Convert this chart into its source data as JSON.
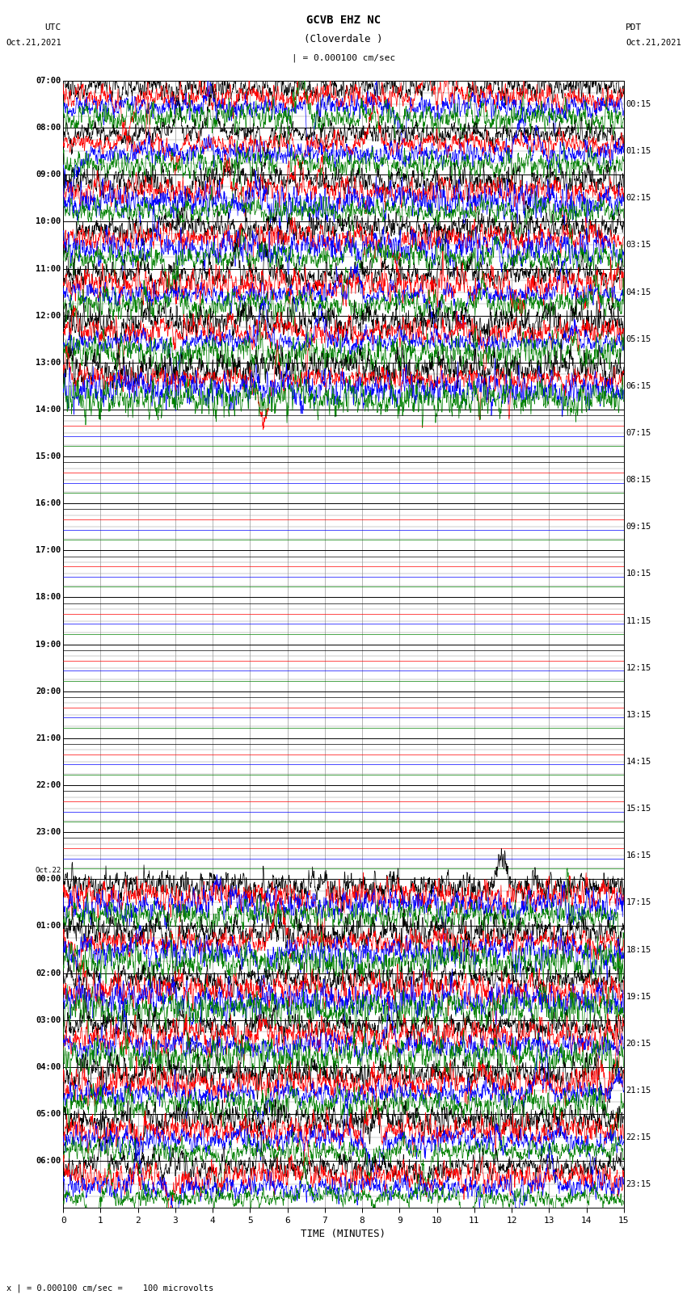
{
  "title_line1": "GCVB EHZ NC",
  "title_line2": "(Cloverdale )",
  "scale_text": "| = 0.000100 cm/sec",
  "bottom_label": "x | = 0.000100 cm/sec =    100 microvolts",
  "xlabel": "TIME (MINUTES)",
  "left_times": [
    "07:00",
    "08:00",
    "09:00",
    "10:00",
    "11:00",
    "12:00",
    "13:00",
    "14:00",
    "15:00",
    "16:00",
    "17:00",
    "18:00",
    "19:00",
    "20:00",
    "21:00",
    "22:00",
    "23:00",
    "Oct.22\n00:00",
    "01:00",
    "02:00",
    "03:00",
    "04:00",
    "05:00",
    "06:00"
  ],
  "right_times": [
    "00:15",
    "01:15",
    "02:15",
    "03:15",
    "04:15",
    "05:15",
    "06:15",
    "07:15",
    "08:15",
    "09:15",
    "10:15",
    "11:15",
    "12:15",
    "13:15",
    "14:15",
    "15:15",
    "16:15",
    "17:15",
    "18:15",
    "19:15",
    "20:15",
    "21:15",
    "22:15",
    "23:15"
  ],
  "n_rows": 24,
  "n_traces_per_row": 4,
  "trace_colors": [
    "black",
    "red",
    "blue",
    "green"
  ],
  "minutes_per_row": 15,
  "figsize": [
    8.5,
    16.13
  ],
  "dpi": 100,
  "bg_color": "white",
  "grid_color": "#999999",
  "quiet_rows": [
    7,
    8,
    9,
    10,
    11,
    12,
    13,
    14,
    15,
    16
  ],
  "active_rows": [
    0,
    1,
    2,
    3,
    4,
    5,
    6,
    20,
    21,
    22,
    23
  ],
  "partial_active_rows": [
    17,
    18,
    19
  ],
  "seed": 42
}
